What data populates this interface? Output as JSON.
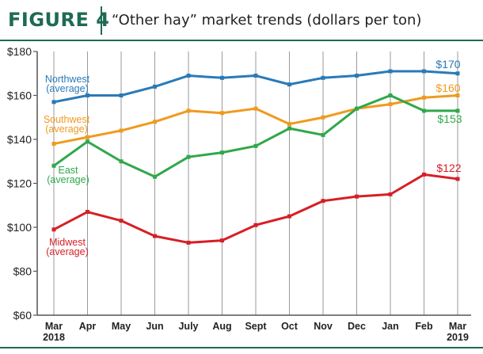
{
  "figure": {
    "label": "FIGURE 4",
    "title": "“Other hay” market trends (dollars per ton)"
  },
  "chart_data": {
    "type": "line",
    "categories": [
      "Mar\n2018",
      "Apr",
      "May",
      "Jun",
      "July",
      "Aug",
      "Sept",
      "Oct",
      "Nov",
      "Dec",
      "Jan",
      "Feb",
      "Mar\n2019"
    ],
    "ylim": [
      60,
      180
    ],
    "yticks": [
      60,
      80,
      100,
      120,
      140,
      160,
      180
    ],
    "ytick_labels": [
      "$60",
      "$80",
      "$100",
      "$120",
      "$140",
      "$160",
      "$180"
    ],
    "grid": "vertical",
    "series": [
      {
        "name": "Northwest\n(average)",
        "color": "#2a7ab8",
        "values": [
          157,
          160,
          160,
          164,
          169,
          168,
          169,
          165,
          168,
          169,
          171,
          171,
          170
        ],
        "end_label": "$170",
        "end_label_color": "#2a7ab8"
      },
      {
        "name": "Southwest\n(average)",
        "color": "#f09a1e",
        "values": [
          138,
          141,
          144,
          148,
          153,
          152,
          154,
          147,
          150,
          154,
          156,
          159,
          160
        ],
        "end_label": "$160",
        "end_label_color": "#f09a1e"
      },
      {
        "name": "East\n(average)",
        "color": "#2fa84a",
        "values": [
          128,
          139,
          130,
          123,
          132,
          134,
          137,
          145,
          142,
          154,
          160,
          153,
          153
        ],
        "end_label": "$153",
        "end_label_color": "#2fa84a"
      },
      {
        "name": "Midwest\n(average)",
        "color": "#d61f26",
        "values": [
          99,
          107,
          103,
          96,
          93,
          94,
          101,
          105,
          112,
          114,
          115,
          124,
          122
        ],
        "end_label": "$122",
        "end_label_color": "#d61f26"
      }
    ]
  }
}
